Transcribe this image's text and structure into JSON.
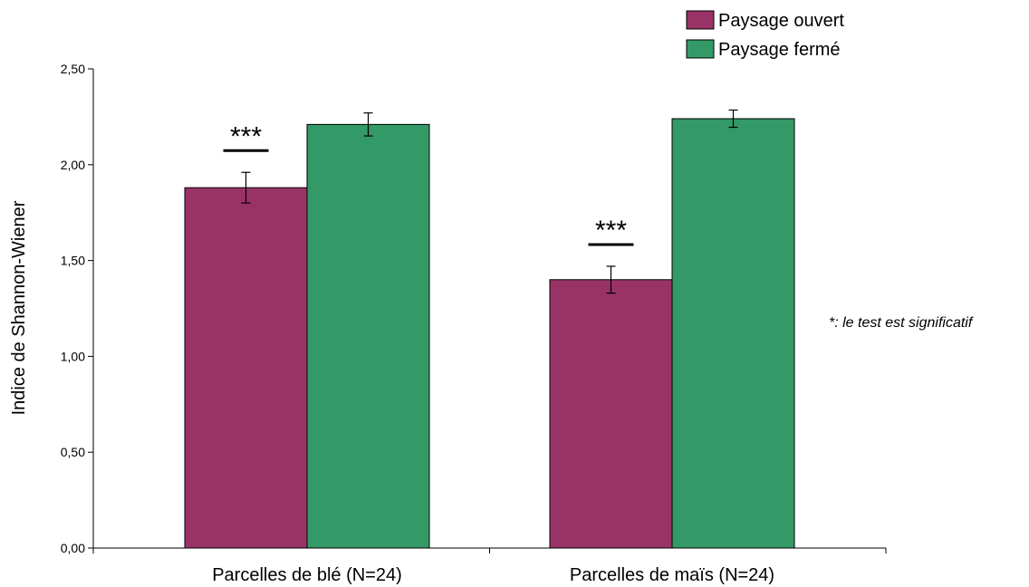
{
  "chart_data": {
    "type": "bar",
    "categories": [
      "Parcelles de blé (N=24)",
      "Parcelles de maïs (N=24)"
    ],
    "series": [
      {
        "name": "Paysage ouvert",
        "color": "#993366",
        "values": [
          1.88,
          1.4
        ],
        "errors": [
          0.08,
          0.07
        ]
      },
      {
        "name": "Paysage fermé",
        "color": "#339966",
        "values": [
          2.21,
          2.24
        ],
        "errors": [
          0.06,
          0.045
        ]
      }
    ],
    "title": "",
    "xlabel": "",
    "ylabel": "Indice de Shannon-Wiener",
    "ylim": [
      0,
      2.5
    ],
    "yticks": [
      "0,00",
      "0,50",
      "1,00",
      "1,50",
      "2,00",
      "2,50"
    ],
    "grid": false,
    "legend_position": "top-right",
    "significance": [
      {
        "category": "Parcelles de blé (N=24)",
        "label": "***"
      },
      {
        "category": "Parcelles de maïs (N=24)",
        "label": "***"
      }
    ],
    "annotation": "*: le test est significatif"
  }
}
